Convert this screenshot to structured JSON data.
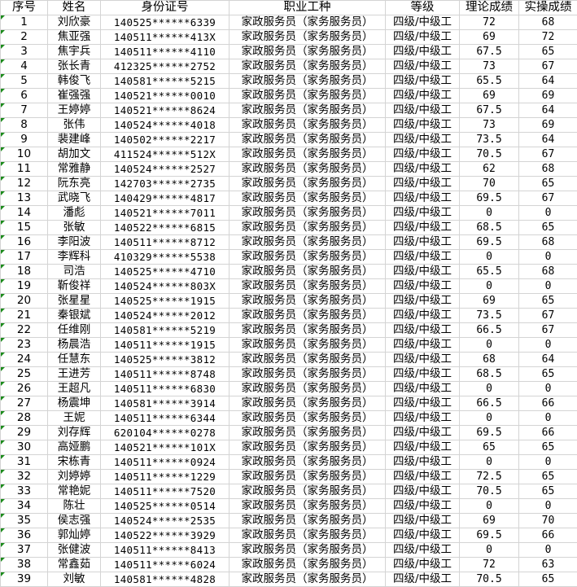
{
  "headers": [
    "序号",
    "姓名",
    "身份证号",
    "职业工种",
    "等级",
    "理论成绩",
    "实操成绩"
  ],
  "rows": [
    [
      "1",
      "刘欣豪",
      "140525******6339",
      "家政服务员（家务服务员）",
      "四级/中级工",
      "72",
      "68"
    ],
    [
      "2",
      "焦亚强",
      "140511******413X",
      "家政服务员（家务服务员）",
      "四级/中级工",
      "69",
      "72"
    ],
    [
      "3",
      "焦宇兵",
      "140511******4110",
      "家政服务员（家务服务员）",
      "四级/中级工",
      "67.5",
      "65"
    ],
    [
      "4",
      "张长青",
      "412325******2752",
      "家政服务员（家务服务员）",
      "四级/中级工",
      "73",
      "67"
    ],
    [
      "5",
      "韩俊飞",
      "140581******5215",
      "家政服务员（家务服务员）",
      "四级/中级工",
      "65.5",
      "64"
    ],
    [
      "6",
      "崔强强",
      "140521******0010",
      "家政服务员（家务服务员）",
      "四级/中级工",
      "69",
      "69"
    ],
    [
      "7",
      "王婷婷",
      "140521******8624",
      "家政服务员（家务服务员）",
      "四级/中级工",
      "67.5",
      "64"
    ],
    [
      "8",
      "张伟",
      "140524******4018",
      "家政服务员（家务服务员）",
      "四级/中级工",
      "73",
      "69"
    ],
    [
      "9",
      "裴建峰",
      "140502******2217",
      "家政服务员（家务服务员）",
      "四级/中级工",
      "73.5",
      "64"
    ],
    [
      "10",
      "胡加文",
      "411524******512X",
      "家政服务员（家务服务员）",
      "四级/中级工",
      "70.5",
      "67"
    ],
    [
      "11",
      "常雅静",
      "140524******2527",
      "家政服务员（家务服务员）",
      "四级/中级工",
      "62",
      "68"
    ],
    [
      "12",
      "阮东亮",
      "142703******2735",
      "家政服务员（家务服务员）",
      "四级/中级工",
      "70",
      "65"
    ],
    [
      "13",
      "武晓飞",
      "140429******4817",
      "家政服务员（家务服务员）",
      "四级/中级工",
      "69.5",
      "67"
    ],
    [
      "14",
      "潘彪",
      "140521******7011",
      "家政服务员（家务服务员）",
      "四级/中级工",
      "0",
      "0"
    ],
    [
      "15",
      "张敏",
      "140522******6815",
      "家政服务员（家务服务员）",
      "四级/中级工",
      "68.5",
      "65"
    ],
    [
      "16",
      "李阳波",
      "140511******8712",
      "家政服务员（家务服务员）",
      "四级/中级工",
      "69.5",
      "68"
    ],
    [
      "17",
      "李辉科",
      "410329******5538",
      "家政服务员（家务服务员）",
      "四级/中级工",
      "0",
      "0"
    ],
    [
      "18",
      "司浩",
      "140525******4710",
      "家政服务员（家务服务员）",
      "四级/中级工",
      "65.5",
      "68"
    ],
    [
      "19",
      "靳俊祥",
      "140524******803X",
      "家政服务员（家务服务员）",
      "四级/中级工",
      "0",
      "0"
    ],
    [
      "20",
      "张星星",
      "140525******1915",
      "家政服务员（家务服务员）",
      "四级/中级工",
      "69",
      "65"
    ],
    [
      "21",
      "秦银斌",
      "140524******2012",
      "家政服务员（家务服务员）",
      "四级/中级工",
      "73.5",
      "67"
    ],
    [
      "22",
      "任维刚",
      "140581******5219",
      "家政服务员（家务服务员）",
      "四级/中级工",
      "66.5",
      "67"
    ],
    [
      "23",
      "杨晨浩",
      "140511******1915",
      "家政服务员（家务服务员）",
      "四级/中级工",
      "0",
      "0"
    ],
    [
      "24",
      "任慧东",
      "140525******3812",
      "家政服务员（家务服务员）",
      "四级/中级工",
      "68",
      "64"
    ],
    [
      "25",
      "王进芳",
      "140511******8748",
      "家政服务员（家务服务员）",
      "四级/中级工",
      "68.5",
      "65"
    ],
    [
      "26",
      "王超凡",
      "140511******6830",
      "家政服务员（家务服务员）",
      "四级/中级工",
      "0",
      "0"
    ],
    [
      "27",
      "杨震坤",
      "140581******3914",
      "家政服务员（家务服务员）",
      "四级/中级工",
      "66.5",
      "66"
    ],
    [
      "28",
      "王妮",
      "140511******6344",
      "家政服务员（家务服务员）",
      "四级/中级工",
      "0",
      "0"
    ],
    [
      "29",
      "刘存辉",
      "620104******0278",
      "家政服务员（家务服务员）",
      "四级/中级工",
      "69.5",
      "66"
    ],
    [
      "30",
      "高娅鹏",
      "140521******101X",
      "家政服务员（家务服务员）",
      "四级/中级工",
      "65",
      "65"
    ],
    [
      "31",
      "宋栋青",
      "140511******0924",
      "家政服务员（家务服务员）",
      "四级/中级工",
      "0",
      "0"
    ],
    [
      "32",
      "刘婷婷",
      "140511******1229",
      "家政服务员（家务服务员）",
      "四级/中级工",
      "72.5",
      "65"
    ],
    [
      "33",
      "常艳妮",
      "140511******7520",
      "家政服务员（家务服务员）",
      "四级/中级工",
      "70.5",
      "65"
    ],
    [
      "34",
      "陈壮",
      "140525******0514",
      "家政服务员（家务服务员）",
      "四级/中级工",
      "0",
      "0"
    ],
    [
      "35",
      "侯志强",
      "140524******2535",
      "家政服务员（家务服务员）",
      "四级/中级工",
      "69",
      "70"
    ],
    [
      "36",
      "郭灿婷",
      "140522******3929",
      "家政服务员（家务服务员）",
      "四级/中级工",
      "69.5",
      "66"
    ],
    [
      "37",
      "张健波",
      "140511******8413",
      "家政服务员（家务服务员）",
      "四级/中级工",
      "0",
      "0"
    ],
    [
      "38",
      "常鑫茹",
      "140511******6024",
      "家政服务员（家务服务员）",
      "四级/中级工",
      "72",
      "63"
    ],
    [
      "39",
      "刘敏",
      "140581******4828",
      "家政服务员（家务服务员）",
      "四级/中级工",
      "70.5",
      "65"
    ]
  ],
  "colors": {
    "grid": "#d4d4d4",
    "error_marker": "#1a8a1a"
  }
}
